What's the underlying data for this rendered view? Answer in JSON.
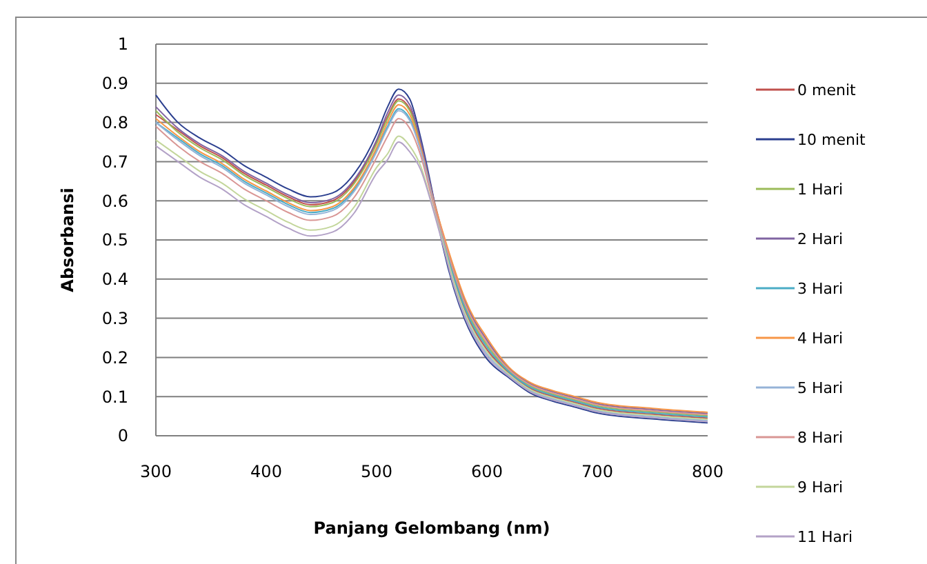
{
  "chart_data": {
    "type": "line",
    "xlabel": "Panjang Gelombang (nm)",
    "ylabel": "Absorbansi",
    "xlim": [
      300,
      800
    ],
    "xticks": [
      300,
      400,
      500,
      600,
      700,
      800
    ],
    "ylim": [
      0,
      1
    ],
    "yticks": [
      0,
      0.1,
      0.2,
      0.3,
      0.4,
      0.5,
      0.6,
      0.7,
      0.8,
      0.9,
      1
    ],
    "grid": "y",
    "legend": "right",
    "marker": "none",
    "x": [
      300,
      320,
      340,
      360,
      380,
      400,
      420,
      440,
      460,
      480,
      500,
      510,
      520,
      530,
      540,
      550,
      560,
      570,
      580,
      600,
      620,
      640,
      660,
      680,
      700,
      750,
      800
    ],
    "series": [
      {
        "name": "0 menit",
        "color": "#c0504d",
        "values": [
          0.82,
          0.78,
          0.74,
          0.71,
          0.67,
          0.64,
          0.61,
          0.59,
          0.6,
          0.65,
          0.75,
          0.815,
          0.86,
          0.835,
          0.745,
          0.623,
          0.5,
          0.4,
          0.32,
          0.22,
          0.16,
          0.12,
          0.1,
          0.085,
          0.07,
          0.055,
          0.045
        ]
      },
      {
        "name": "10 menit",
        "color": "#2b3f8f",
        "values": [
          0.87,
          0.8,
          0.76,
          0.73,
          0.69,
          0.66,
          0.63,
          0.61,
          0.62,
          0.67,
          0.77,
          0.84,
          0.885,
          0.86,
          0.76,
          0.63,
          0.484,
          0.376,
          0.296,
          0.196,
          0.148,
          0.108,
          0.088,
          0.073,
          0.058,
          0.043,
          0.033
        ]
      },
      {
        "name": "1 Hari",
        "color": "#9bbb59",
        "values": [
          0.83,
          0.775,
          0.735,
          0.705,
          0.665,
          0.635,
          0.605,
          0.585,
          0.595,
          0.645,
          0.745,
          0.81,
          0.855,
          0.83,
          0.742,
          0.621,
          0.508,
          0.412,
          0.332,
          0.232,
          0.166,
          0.126,
          0.106,
          0.091,
          0.076,
          0.061,
          0.051
        ]
      },
      {
        "name": "2 Hari",
        "color": "#8064a2",
        "values": [
          0.84,
          0.785,
          0.745,
          0.715,
          0.675,
          0.645,
          0.615,
          0.595,
          0.605,
          0.655,
          0.755,
          0.825,
          0.87,
          0.845,
          0.751,
          0.626,
          0.516,
          0.424,
          0.344,
          0.244,
          0.172,
          0.132,
          0.112,
          0.097,
          0.082,
          0.067,
          0.057
        ]
      },
      {
        "name": "3 Hari",
        "color": "#4bacc6",
        "values": [
          0.8,
          0.76,
          0.72,
          0.69,
          0.65,
          0.62,
          0.59,
          0.57,
          0.58,
          0.63,
          0.73,
          0.79,
          0.835,
          0.81,
          0.73,
          0.615,
          0.504,
          0.406,
          0.326,
          0.226,
          0.163,
          0.123,
          0.103,
          0.088,
          0.073,
          0.058,
          0.048
        ]
      },
      {
        "name": "4 Hari",
        "color": "#f79646",
        "values": [
          0.81,
          0.765,
          0.725,
          0.695,
          0.655,
          0.625,
          0.595,
          0.575,
          0.585,
          0.635,
          0.735,
          0.8,
          0.845,
          0.82,
          0.736,
          0.618,
          0.52,
          0.43,
          0.35,
          0.25,
          0.175,
          0.135,
          0.115,
          0.1,
          0.085,
          0.07,
          0.06
        ]
      },
      {
        "name": "5 Hari",
        "color": "#95b3d7",
        "values": [
          0.8,
          0.755,
          0.715,
          0.685,
          0.645,
          0.615,
          0.585,
          0.565,
          0.575,
          0.625,
          0.725,
          0.785,
          0.83,
          0.805,
          0.727,
          0.614,
          0.492,
          0.388,
          0.308,
          0.208,
          0.154,
          0.114,
          0.094,
          0.079,
          0.064,
          0.049,
          0.039
        ]
      },
      {
        "name": "8 Hari",
        "color": "#d99694",
        "values": [
          0.79,
          0.74,
          0.7,
          0.67,
          0.63,
          0.6,
          0.57,
          0.55,
          0.56,
          0.61,
          0.71,
          0.765,
          0.81,
          0.785,
          0.715,
          0.608,
          0.512,
          0.418,
          0.338,
          0.238,
          0.169,
          0.129,
          0.109,
          0.094,
          0.079,
          0.064,
          0.054
        ]
      },
      {
        "name": "9 Hari",
        "color": "#c3d69b",
        "values": [
          0.755,
          0.715,
          0.675,
          0.645,
          0.605,
          0.575,
          0.545,
          0.525,
          0.535,
          0.585,
          0.685,
          0.72,
          0.765,
          0.74,
          0.688,
          0.594,
          0.496,
          0.394,
          0.314,
          0.214,
          0.157,
          0.117,
          0.097,
          0.082,
          0.067,
          0.052,
          0.042
        ]
      },
      {
        "name": "11 Hari",
        "color": "#b3a2c7",
        "values": [
          0.74,
          0.7,
          0.66,
          0.63,
          0.59,
          0.56,
          0.53,
          0.51,
          0.52,
          0.57,
          0.67,
          0.705,
          0.75,
          0.725,
          0.679,
          0.59,
          0.488,
          0.382,
          0.302,
          0.202,
          0.151,
          0.111,
          0.091,
          0.076,
          0.061,
          0.046,
          0.036
        ]
      }
    ]
  }
}
